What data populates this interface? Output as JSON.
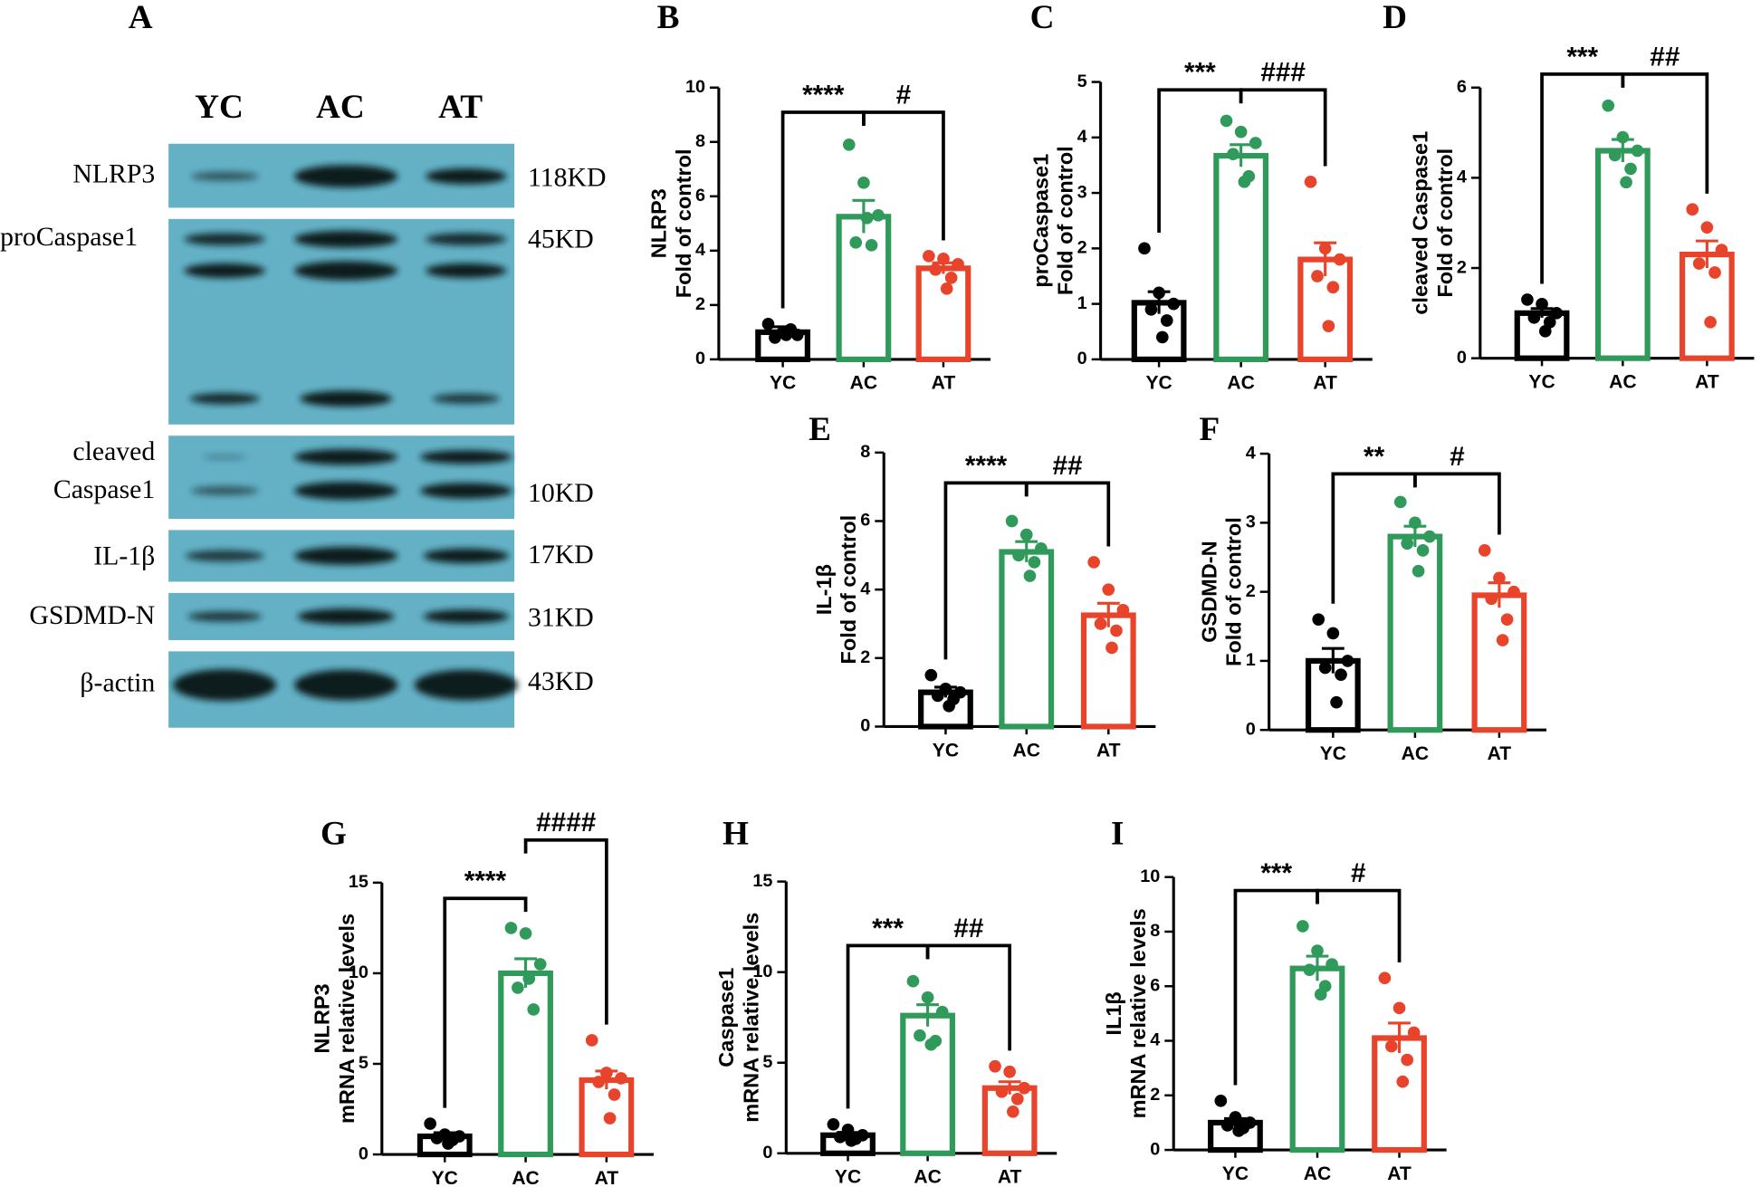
{
  "blot": {
    "label": "A",
    "lanes": [
      "YC",
      "AC",
      "AT"
    ],
    "proteins": [
      [
        "NLRP3"
      ],
      [
        "proCaspase1"
      ],
      [
        "cleaved",
        "Caspase1"
      ],
      [
        "IL-1β"
      ],
      [
        "GSDMD-N"
      ],
      [
        "β-actin"
      ]
    ],
    "sizes": [
      "118KD",
      "45KD",
      "10KD",
      "17KD",
      "31KD",
      "43KD"
    ]
  },
  "chart_data": [
    {
      "type": "bar",
      "label": "B",
      "ylabel": [
        "NLRP3",
        "Fold of control"
      ],
      "categories": [
        "YC",
        "AC",
        "AT"
      ],
      "colors": [
        "#000000",
        "#2f9a5a",
        "#e8432b"
      ],
      "values": [
        1.0,
        5.25,
        3.35
      ],
      "errors": [
        0.2,
        0.6,
        0.2
      ],
      "points": [
        [
          1.3,
          1.0,
          0.9,
          0.8,
          1.1,
          0.9
        ],
        [
          7.9,
          6.5,
          5.3,
          4.3,
          4.2,
          5.2
        ],
        [
          3.8,
          3.7,
          3.5,
          3.3,
          3.0,
          2.6
        ]
      ],
      "annotations": [
        "****",
        "#"
      ],
      "ylim": [
        0,
        10
      ],
      "yticks": [
        0,
        2,
        4,
        6,
        8,
        10
      ]
    },
    {
      "type": "bar",
      "label": "C",
      "ylabel": [
        "proCaspase1",
        "Fold of control"
      ],
      "categories": [
        "YC",
        "AC",
        "AT"
      ],
      "colors": [
        "#000000",
        "#2f9a5a",
        "#e8432b"
      ],
      "values": [
        1.02,
        3.67,
        1.8
      ],
      "errors": [
        0.2,
        0.2,
        0.3
      ],
      "points": [
        [
          2.0,
          1.2,
          1.0,
          0.9,
          0.7,
          0.4
        ],
        [
          4.3,
          4.1,
          3.9,
          3.7,
          3.3,
          3.2
        ],
        [
          3.2,
          2.0,
          1.8,
          1.5,
          1.3,
          0.6
        ]
      ],
      "annotations": [
        "***",
        "###"
      ],
      "ylim": [
        0,
        5
      ],
      "yticks": [
        0,
        1,
        2,
        3,
        4,
        5
      ]
    },
    {
      "type": "bar",
      "label": "D",
      "ylabel": [
        "cleaved Caspase1",
        "Fold of control"
      ],
      "categories": [
        "YC",
        "AC",
        "AT"
      ],
      "colors": [
        "#000000",
        "#2f9a5a",
        "#e8432b"
      ],
      "values": [
        1.0,
        4.6,
        2.3
      ],
      "errors": [
        0.1,
        0.25,
        0.3
      ],
      "points": [
        [
          1.3,
          1.2,
          1.0,
          0.9,
          0.8,
          0.6
        ],
        [
          5.6,
          4.9,
          4.6,
          4.5,
          4.2,
          3.9
        ],
        [
          3.3,
          2.9,
          2.4,
          2.1,
          1.9,
          0.8
        ]
      ],
      "annotations": [
        "***",
        "##"
      ],
      "ylim": [
        0,
        6
      ],
      "yticks": [
        0,
        2,
        4,
        6
      ]
    },
    {
      "type": "bar",
      "label": "E",
      "ylabel": [
        "IL-1β",
        "Fold of control"
      ],
      "categories": [
        "YC",
        "AC",
        "AT"
      ],
      "colors": [
        "#000000",
        "#2f9a5a",
        "#e8432b"
      ],
      "values": [
        1.0,
        5.1,
        3.25
      ],
      "errors": [
        0.15,
        0.3,
        0.35
      ],
      "points": [
        [
          1.5,
          1.1,
          1.0,
          0.9,
          0.8,
          0.6
        ],
        [
          6.0,
          5.6,
          5.2,
          5.0,
          4.8,
          4.4
        ],
        [
          4.8,
          4.0,
          3.4,
          3.0,
          2.8,
          2.3
        ]
      ],
      "annotations": [
        "****",
        "##"
      ],
      "ylim": [
        0,
        8
      ],
      "yticks": [
        0,
        2,
        4,
        6,
        8
      ]
    },
    {
      "type": "bar",
      "label": "F",
      "ylabel": [
        "GSDMD-N",
        "Fold of control"
      ],
      "categories": [
        "YC",
        "AC",
        "AT"
      ],
      "colors": [
        "#000000",
        "#2f9a5a",
        "#e8432b"
      ],
      "values": [
        1.0,
        2.8,
        1.95
      ],
      "errors": [
        0.18,
        0.15,
        0.18
      ],
      "points": [
        [
          1.6,
          1.4,
          1.0,
          0.9,
          0.8,
          0.4
        ],
        [
          3.3,
          3.0,
          2.8,
          2.7,
          2.6,
          2.3
        ],
        [
          2.6,
          2.2,
          2.0,
          1.9,
          1.6,
          1.3
        ]
      ],
      "annotations": [
        "**",
        "#"
      ],
      "ylim": [
        0,
        4
      ],
      "yticks": [
        0,
        1,
        2,
        3,
        4
      ]
    },
    {
      "type": "bar",
      "label": "G",
      "ylabel": [
        "NLRP3",
        "mRNA relative levels"
      ],
      "categories": [
        "YC",
        "AC",
        "AT"
      ],
      "colors": [
        "#000000",
        "#2f9a5a",
        "#e8432b"
      ],
      "values": [
        1.0,
        10.0,
        4.1
      ],
      "errors": [
        0.2,
        0.8,
        0.5
      ],
      "points": [
        [
          1.7,
          1.1,
          1.0,
          0.9,
          0.8,
          0.6
        ],
        [
          12.5,
          12.2,
          10.5,
          9.2,
          8.0,
          9.7
        ],
        [
          6.3,
          4.5,
          4.2,
          4.0,
          3.3,
          2.0
        ]
      ],
      "annotations": [
        "****",
        "####"
      ],
      "ylim": [
        0,
        15
      ],
      "yticks": [
        0,
        5,
        10,
        15
      ]
    },
    {
      "type": "bar",
      "label": "H",
      "ylabel": [
        "Caspase1",
        "mRNA relative levels"
      ],
      "categories": [
        "YC",
        "AC",
        "AT"
      ],
      "colors": [
        "#000000",
        "#2f9a5a",
        "#e8432b"
      ],
      "values": [
        1.0,
        7.6,
        3.6
      ],
      "errors": [
        0.15,
        0.6,
        0.35
      ],
      "points": [
        [
          1.6,
          1.3,
          1.0,
          0.9,
          0.8,
          0.7
        ],
        [
          9.5,
          8.6,
          7.8,
          6.5,
          6.2,
          6.0
        ],
        [
          4.8,
          4.5,
          3.6,
          3.4,
          3.0,
          2.3
        ]
      ],
      "annotations": [
        "***",
        "##"
      ],
      "ylim": [
        0,
        15
      ],
      "yticks": [
        0,
        5,
        10,
        15
      ]
    },
    {
      "type": "bar",
      "label": "I",
      "ylabel": [
        "IL1β",
        "mRNA relative levels"
      ],
      "categories": [
        "YC",
        "AC",
        "AT"
      ],
      "colors": [
        "#000000",
        "#2f9a5a",
        "#e8432b"
      ],
      "values": [
        1.0,
        6.65,
        4.1
      ],
      "errors": [
        0.15,
        0.45,
        0.55
      ],
      "points": [
        [
          1.8,
          1.2,
          1.0,
          0.9,
          0.8,
          0.7
        ],
        [
          8.2,
          7.3,
          6.8,
          6.6,
          6.0,
          5.7
        ],
        [
          6.3,
          5.2,
          4.3,
          3.8,
          3.3,
          2.5
        ]
      ],
      "annotations": [
        "***",
        "#"
      ],
      "ylim": [
        0,
        10
      ],
      "yticks": [
        0,
        2,
        4,
        6,
        8,
        10
      ]
    }
  ]
}
